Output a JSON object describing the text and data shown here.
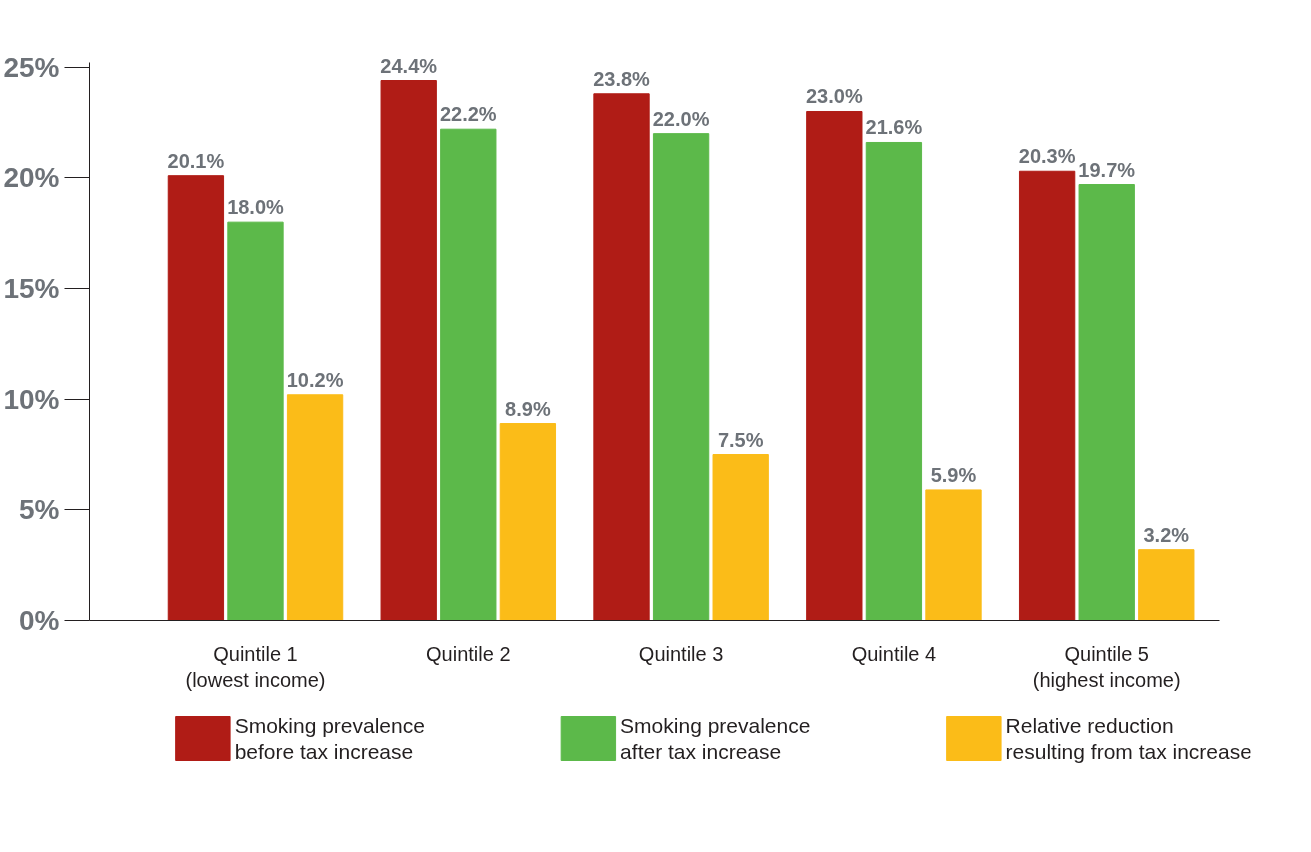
{
  "chart_data": {
    "type": "bar",
    "categories": [
      "Quintile 1\n(lowest income)",
      "Quintile 2",
      "Quintile 3",
      "Quintile 4",
      "Quintile 5\n(highest income)"
    ],
    "series": [
      {
        "name": "Smoking prevalence\nbefore tax increase",
        "color": "#b01c16",
        "values": [
          20.1,
          24.4,
          23.8,
          23.0,
          20.3
        ],
        "value_labels": [
          "20.1%",
          "24.4%",
          "23.8%",
          "23.0%",
          "20.3%"
        ]
      },
      {
        "name": "Smoking prevalence\nafter tax increase",
        "color": "#5cb94a",
        "values": [
          18.0,
          22.2,
          22.0,
          21.6,
          19.7
        ],
        "value_labels": [
          "18.0%",
          "22.2%",
          "22.0%",
          "21.6%",
          "19.7%"
        ]
      },
      {
        "name": "Relative reduction\nresulting from tax increase",
        "color": "#fbbc18",
        "values": [
          10.2,
          8.9,
          7.5,
          5.9,
          3.2
        ],
        "value_labels": [
          "10.2%",
          "8.9%",
          "7.5%",
          "5.9%",
          "3.2%"
        ]
      }
    ],
    "ylim": [
      0,
      25.2
    ],
    "yticks": [
      {
        "value": 0,
        "label": "0%"
      },
      {
        "value": 5,
        "label": "5%"
      },
      {
        "value": 10,
        "label": "10%"
      },
      {
        "value": 15,
        "label": "15%"
      },
      {
        "value": 20,
        "label": "20%"
      },
      {
        "value": 25,
        "label": "25%"
      }
    ],
    "grid": false,
    "legend": "bottom"
  }
}
